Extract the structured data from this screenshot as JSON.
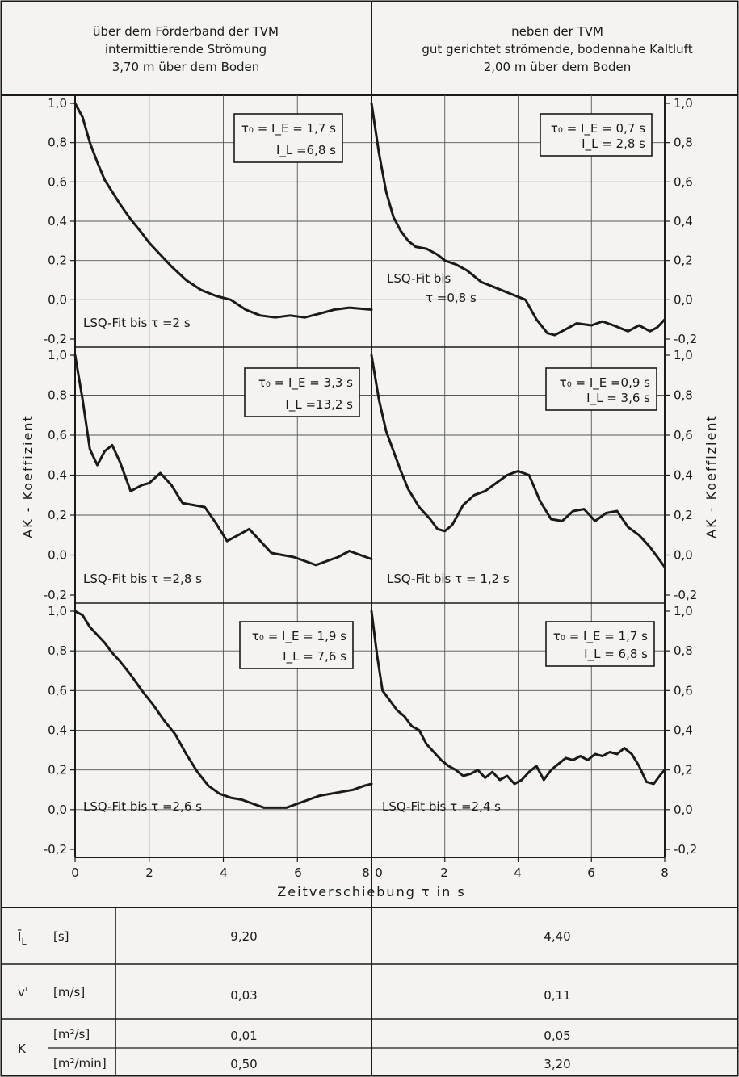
{
  "header": {
    "left": [
      "über dem Förderband der TVM",
      "intermittierende Strömung",
      "3,70 m über dem Boden"
    ],
    "right": [
      "neben der TVM",
      "gut gerichtet strömende, bodennahe Kaltluft",
      "2,00 m über dem Boden"
    ]
  },
  "axes": {
    "ylabel_left": "AK - Koeffizient",
    "ylabel_right": "AK - Koeffizient",
    "xlabel": "Zeitverschiebung τ in s",
    "x_ticks": [
      "0",
      "2",
      "4",
      "6",
      "8"
    ],
    "x_ticks_right": [
      "0",
      "2",
      "4",
      "6",
      "8"
    ],
    "y_ticks": [
      "1,0",
      "0,8",
      "0,6",
      "0,4",
      "0,2",
      "0,0",
      "-0,2"
    ],
    "y_ticks_right": [
      "1,0",
      "0,8",
      "0,6",
      "0,4",
      "0,2",
      "0,0",
      "-0,2"
    ]
  },
  "table": {
    "rows": [
      {
        "symbol": "Ī",
        "sub": "L",
        "unit": "[s]",
        "left": "9,20",
        "right": "4,40"
      },
      {
        "symbol": "v'",
        "sub": "",
        "unit": "[m/s]",
        "left": "0,03",
        "right": "0,11"
      }
    ],
    "k_row": {
      "symbol": "K",
      "unit1": "[m²/s]",
      "left1": "0,01",
      "right1": "0,05",
      "unit2": "[m²/min]",
      "left2": "0,50",
      "right2": "3,20"
    }
  },
  "chart_data": {
    "type": "line",
    "xlim": [
      0,
      8
    ],
    "ylim": [
      -0.2,
      1.0
    ],
    "grid": true,
    "panels": [
      {
        "id": "top-left",
        "fit_label": "LSQ-Fit bis τ =2 s",
        "box_line1": "τ₀ = I_E = 1,7 s",
        "box_line2": "I_L =6,8 s",
        "x": [
          0,
          0.2,
          0.4,
          0.6,
          0.8,
          1.0,
          1.2,
          1.5,
          1.8,
          2.0,
          2.3,
          2.6,
          3.0,
          3.4,
          3.8,
          4.2,
          4.6,
          5.0,
          5.4,
          5.8,
          6.2,
          6.6,
          7.0,
          7.4,
          8.0
        ],
        "y": [
          1.0,
          0.93,
          0.8,
          0.7,
          0.61,
          0.55,
          0.49,
          0.41,
          0.34,
          0.29,
          0.23,
          0.17,
          0.1,
          0.05,
          0.02,
          0.0,
          -0.05,
          -0.08,
          -0.09,
          -0.08,
          -0.09,
          -0.07,
          -0.05,
          -0.04,
          -0.05
        ]
      },
      {
        "id": "top-right",
        "fit_label": "LSQ-Fit bis τ =0,8 s",
        "box_line1": "τ₀ = I_E = 0,7 s",
        "box_line2": "I_L = 2,8 s",
        "x": [
          0,
          0.2,
          0.4,
          0.6,
          0.8,
          1.0,
          1.2,
          1.5,
          1.8,
          2.0,
          2.3,
          2.6,
          3.0,
          3.4,
          3.8,
          4.2,
          4.5,
          4.8,
          5.0,
          5.3,
          5.6,
          6.0,
          6.3,
          6.6,
          7.0,
          7.3,
          7.6,
          7.8,
          8.0
        ],
        "y": [
          1.0,
          0.75,
          0.55,
          0.42,
          0.35,
          0.3,
          0.27,
          0.26,
          0.23,
          0.2,
          0.18,
          0.15,
          0.09,
          0.06,
          0.03,
          0.0,
          -0.1,
          -0.17,
          -0.18,
          -0.15,
          -0.12,
          -0.13,
          -0.11,
          -0.13,
          -0.16,
          -0.13,
          -0.16,
          -0.14,
          -0.1
        ]
      },
      {
        "id": "middle-left",
        "fit_label": "LSQ-Fit bis τ =2,8 s",
        "box_line1": "τ₀ = I_E = 3,3 s",
        "box_line2": "I_L =13,2 s",
        "x": [
          0,
          0.2,
          0.4,
          0.6,
          0.8,
          1.0,
          1.2,
          1.5,
          1.8,
          2.0,
          2.3,
          2.6,
          2.9,
          3.2,
          3.5,
          3.8,
          4.1,
          4.4,
          4.7,
          5.0,
          5.3,
          5.6,
          5.9,
          6.2,
          6.5,
          6.8,
          7.1,
          7.4,
          7.7,
          8.0
        ],
        "y": [
          1.0,
          0.78,
          0.53,
          0.45,
          0.52,
          0.55,
          0.47,
          0.32,
          0.35,
          0.36,
          0.41,
          0.35,
          0.26,
          0.25,
          0.24,
          0.16,
          0.07,
          0.1,
          0.13,
          0.07,
          0.01,
          0.0,
          -0.01,
          -0.03,
          -0.05,
          -0.03,
          -0.01,
          0.02,
          0.0,
          -0.02
        ]
      },
      {
        "id": "middle-right",
        "fit_label": "LSQ-Fit bis τ = 1,2 s",
        "box_line1": "τ₀ = I_E =0,9 s",
        "box_line2": "I_L = 3,6 s",
        "x": [
          0,
          0.2,
          0.4,
          0.6,
          0.8,
          1.0,
          1.3,
          1.6,
          1.8,
          2.0,
          2.2,
          2.5,
          2.8,
          3.1,
          3.4,
          3.7,
          4.0,
          4.3,
          4.6,
          4.9,
          5.2,
          5.5,
          5.8,
          6.1,
          6.4,
          6.7,
          7.0,
          7.3,
          7.6,
          8.0
        ],
        "y": [
          1.0,
          0.78,
          0.62,
          0.52,
          0.42,
          0.33,
          0.24,
          0.18,
          0.13,
          0.12,
          0.15,
          0.25,
          0.3,
          0.32,
          0.36,
          0.4,
          0.42,
          0.4,
          0.27,
          0.18,
          0.17,
          0.22,
          0.23,
          0.17,
          0.21,
          0.22,
          0.14,
          0.1,
          0.04,
          -0.06
        ]
      },
      {
        "id": "bottom-left",
        "fit_label": "LSQ-Fit bis τ =2,6 s",
        "box_line1": "τ₀ = I_E = 1,9 s",
        "box_line2": "I_L = 7,6 s",
        "x": [
          0,
          0.2,
          0.4,
          0.6,
          0.8,
          1.0,
          1.2,
          1.5,
          1.8,
          2.1,
          2.4,
          2.7,
          3.0,
          3.3,
          3.6,
          3.9,
          4.2,
          4.5,
          4.8,
          5.1,
          5.4,
          5.7,
          6.0,
          6.3,
          6.6,
          6.9,
          7.2,
          7.5,
          7.8,
          8.0
        ],
        "y": [
          1.0,
          0.98,
          0.92,
          0.88,
          0.84,
          0.79,
          0.75,
          0.68,
          0.6,
          0.53,
          0.45,
          0.38,
          0.28,
          0.19,
          0.12,
          0.08,
          0.06,
          0.05,
          0.03,
          0.01,
          0.01,
          0.01,
          0.03,
          0.05,
          0.07,
          0.08,
          0.09,
          0.1,
          0.12,
          0.13
        ]
      },
      {
        "id": "bottom-right",
        "fit_label": "LSQ-Fit bis τ =2,4 s",
        "box_line1": "τ₀ = I_E = 1,7 s",
        "box_line2": "I_L = 6,8 s",
        "x": [
          0,
          0.15,
          0.3,
          0.5,
          0.7,
          0.9,
          1.1,
          1.3,
          1.5,
          1.7,
          1.9,
          2.1,
          2.3,
          2.5,
          2.7,
          2.9,
          3.1,
          3.3,
          3.5,
          3.7,
          3.9,
          4.1,
          4.3,
          4.5,
          4.7,
          4.9,
          5.1,
          5.3,
          5.5,
          5.7,
          5.9,
          6.1,
          6.3,
          6.5,
          6.7,
          6.9,
          7.1,
          7.3,
          7.5,
          7.7,
          7.9,
          8.0
        ],
        "y": [
          1.0,
          0.78,
          0.6,
          0.55,
          0.5,
          0.47,
          0.42,
          0.4,
          0.33,
          0.29,
          0.25,
          0.22,
          0.2,
          0.17,
          0.18,
          0.2,
          0.16,
          0.19,
          0.15,
          0.17,
          0.13,
          0.15,
          0.19,
          0.22,
          0.15,
          0.2,
          0.23,
          0.26,
          0.25,
          0.27,
          0.25,
          0.28,
          0.27,
          0.29,
          0.28,
          0.31,
          0.28,
          0.22,
          0.14,
          0.13,
          0.18,
          0.2
        ]
      }
    ]
  }
}
